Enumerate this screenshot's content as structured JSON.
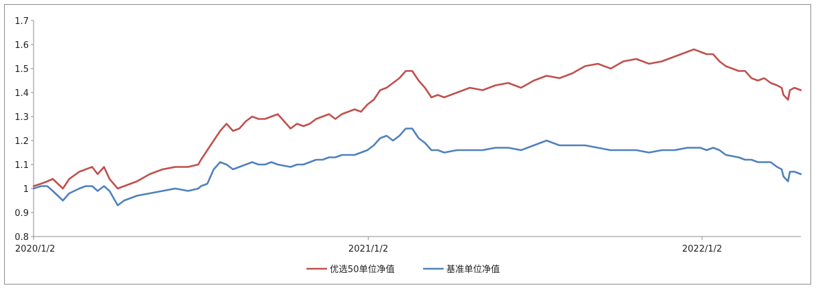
{
  "chart_data": {
    "type": "line",
    "title": "",
    "xlabel": "",
    "ylabel": "",
    "ylim": [
      0.8,
      1.7
    ],
    "yticks": [
      "0.8",
      "0.9",
      "1",
      "1.1",
      "1.2",
      "1.3",
      "1.4",
      "1.5",
      "1.6",
      "1.7"
    ],
    "xticks": [
      {
        "label": "2020/1/2",
        "date": "2020-01-02"
      },
      {
        "label": "2021/1/2",
        "date": "2021-01-02"
      },
      {
        "label": "2022/1/2",
        "date": "2022-01-02"
      }
    ],
    "xlim": [
      "2020-01-02",
      "2022-04-20"
    ],
    "grid": false,
    "legend_position": "bottom",
    "series": [
      {
        "name": "优选50单位净值",
        "color": "#c0504d",
        "points": [
          [
            "2020-01-02",
            1.01
          ],
          [
            "2020-01-10",
            1.02
          ],
          [
            "2020-01-17",
            1.03
          ],
          [
            "2020-01-23",
            1.04
          ],
          [
            "2020-02-03",
            1.0
          ],
          [
            "2020-02-10",
            1.04
          ],
          [
            "2020-02-21",
            1.07
          ],
          [
            "2020-02-28",
            1.08
          ],
          [
            "2020-03-06",
            1.09
          ],
          [
            "2020-03-12",
            1.06
          ],
          [
            "2020-03-19",
            1.09
          ],
          [
            "2020-03-25",
            1.04
          ],
          [
            "2020-04-03",
            1.0
          ],
          [
            "2020-04-10",
            1.01
          ],
          [
            "2020-04-17",
            1.02
          ],
          [
            "2020-04-24",
            1.03
          ],
          [
            "2020-05-08",
            1.06
          ],
          [
            "2020-05-22",
            1.08
          ],
          [
            "2020-06-05",
            1.09
          ],
          [
            "2020-06-19",
            1.09
          ],
          [
            "2020-06-30",
            1.1
          ],
          [
            "2020-07-03",
            1.12
          ],
          [
            "2020-07-10",
            1.16
          ],
          [
            "2020-07-17",
            1.2
          ],
          [
            "2020-07-24",
            1.24
          ],
          [
            "2020-07-31",
            1.27
          ],
          [
            "2020-08-07",
            1.24
          ],
          [
            "2020-08-14",
            1.25
          ],
          [
            "2020-08-21",
            1.28
          ],
          [
            "2020-08-28",
            1.3
          ],
          [
            "2020-09-04",
            1.29
          ],
          [
            "2020-09-11",
            1.29
          ],
          [
            "2020-09-18",
            1.3
          ],
          [
            "2020-09-25",
            1.31
          ],
          [
            "2020-10-09",
            1.25
          ],
          [
            "2020-10-16",
            1.27
          ],
          [
            "2020-10-23",
            1.26
          ],
          [
            "2020-10-30",
            1.27
          ],
          [
            "2020-11-06",
            1.29
          ],
          [
            "2020-11-13",
            1.3
          ],
          [
            "2020-11-20",
            1.31
          ],
          [
            "2020-11-27",
            1.29
          ],
          [
            "2020-12-04",
            1.31
          ],
          [
            "2020-12-11",
            1.32
          ],
          [
            "2020-12-18",
            1.33
          ],
          [
            "2020-12-25",
            1.32
          ],
          [
            "2021-01-01",
            1.35
          ],
          [
            "2021-01-08",
            1.37
          ],
          [
            "2021-01-15",
            1.41
          ],
          [
            "2021-01-22",
            1.42
          ],
          [
            "2021-01-29",
            1.44
          ],
          [
            "2021-02-05",
            1.46
          ],
          [
            "2021-02-12",
            1.49
          ],
          [
            "2021-02-19",
            1.49
          ],
          [
            "2021-02-26",
            1.45
          ],
          [
            "2021-03-05",
            1.42
          ],
          [
            "2021-03-12",
            1.38
          ],
          [
            "2021-03-19",
            1.39
          ],
          [
            "2021-03-26",
            1.38
          ],
          [
            "2021-04-09",
            1.4
          ],
          [
            "2021-04-23",
            1.42
          ],
          [
            "2021-05-07",
            1.41
          ],
          [
            "2021-05-21",
            1.43
          ],
          [
            "2021-06-04",
            1.44
          ],
          [
            "2021-06-18",
            1.42
          ],
          [
            "2021-07-02",
            1.45
          ],
          [
            "2021-07-16",
            1.47
          ],
          [
            "2021-07-30",
            1.46
          ],
          [
            "2021-08-13",
            1.48
          ],
          [
            "2021-08-27",
            1.51
          ],
          [
            "2021-09-10",
            1.52
          ],
          [
            "2021-09-24",
            1.5
          ],
          [
            "2021-10-08",
            1.53
          ],
          [
            "2021-10-22",
            1.54
          ],
          [
            "2021-11-05",
            1.52
          ],
          [
            "2021-11-19",
            1.53
          ],
          [
            "2021-12-03",
            1.55
          ],
          [
            "2021-12-17",
            1.57
          ],
          [
            "2021-12-24",
            1.58
          ],
          [
            "2021-12-31",
            1.57
          ],
          [
            "2022-01-07",
            1.56
          ],
          [
            "2022-01-14",
            1.56
          ],
          [
            "2022-01-21",
            1.53
          ],
          [
            "2022-01-28",
            1.51
          ],
          [
            "2022-02-11",
            1.49
          ],
          [
            "2022-02-18",
            1.49
          ],
          [
            "2022-02-25",
            1.46
          ],
          [
            "2022-03-04",
            1.45
          ],
          [
            "2022-03-11",
            1.46
          ],
          [
            "2022-03-18",
            1.44
          ],
          [
            "2022-03-25",
            1.43
          ],
          [
            "2022-03-30",
            1.42
          ],
          [
            "2022-04-01",
            1.39
          ],
          [
            "2022-04-06",
            1.37
          ],
          [
            "2022-04-08",
            1.41
          ],
          [
            "2022-04-13",
            1.42
          ],
          [
            "2022-04-20",
            1.41
          ]
        ]
      },
      {
        "name": "基准单位净值",
        "color": "#4f81bd",
        "points": [
          [
            "2020-01-02",
            1.0
          ],
          [
            "2020-01-10",
            1.01
          ],
          [
            "2020-01-17",
            1.01
          ],
          [
            "2020-01-23",
            0.99
          ],
          [
            "2020-02-03",
            0.95
          ],
          [
            "2020-02-10",
            0.98
          ],
          [
            "2020-02-21",
            1.0
          ],
          [
            "2020-02-28",
            1.01
          ],
          [
            "2020-03-06",
            1.01
          ],
          [
            "2020-03-12",
            0.99
          ],
          [
            "2020-03-19",
            1.01
          ],
          [
            "2020-03-25",
            0.99
          ],
          [
            "2020-04-03",
            0.93
          ],
          [
            "2020-04-10",
            0.95
          ],
          [
            "2020-04-17",
            0.96
          ],
          [
            "2020-04-24",
            0.97
          ],
          [
            "2020-05-08",
            0.98
          ],
          [
            "2020-05-22",
            0.99
          ],
          [
            "2020-06-05",
            1.0
          ],
          [
            "2020-06-19",
            0.99
          ],
          [
            "2020-06-30",
            1.0
          ],
          [
            "2020-07-03",
            1.01
          ],
          [
            "2020-07-10",
            1.02
          ],
          [
            "2020-07-17",
            1.08
          ],
          [
            "2020-07-24",
            1.11
          ],
          [
            "2020-07-31",
            1.1
          ],
          [
            "2020-08-07",
            1.08
          ],
          [
            "2020-08-14",
            1.09
          ],
          [
            "2020-08-21",
            1.1
          ],
          [
            "2020-08-28",
            1.11
          ],
          [
            "2020-09-04",
            1.1
          ],
          [
            "2020-09-11",
            1.1
          ],
          [
            "2020-09-18",
            1.11
          ],
          [
            "2020-09-25",
            1.1
          ],
          [
            "2020-10-09",
            1.09
          ],
          [
            "2020-10-16",
            1.1
          ],
          [
            "2020-10-23",
            1.1
          ],
          [
            "2020-10-30",
            1.11
          ],
          [
            "2020-11-06",
            1.12
          ],
          [
            "2020-11-13",
            1.12
          ],
          [
            "2020-11-20",
            1.13
          ],
          [
            "2020-11-27",
            1.13
          ],
          [
            "2020-12-04",
            1.14
          ],
          [
            "2020-12-11",
            1.14
          ],
          [
            "2020-12-18",
            1.14
          ],
          [
            "2020-12-25",
            1.15
          ],
          [
            "2021-01-01",
            1.16
          ],
          [
            "2021-01-08",
            1.18
          ],
          [
            "2021-01-15",
            1.21
          ],
          [
            "2021-01-22",
            1.22
          ],
          [
            "2021-01-29",
            1.2
          ],
          [
            "2021-02-05",
            1.22
          ],
          [
            "2021-02-12",
            1.25
          ],
          [
            "2021-02-19",
            1.25
          ],
          [
            "2021-02-26",
            1.21
          ],
          [
            "2021-03-05",
            1.19
          ],
          [
            "2021-03-12",
            1.16
          ],
          [
            "2021-03-19",
            1.16
          ],
          [
            "2021-03-26",
            1.15
          ],
          [
            "2021-04-09",
            1.16
          ],
          [
            "2021-04-23",
            1.16
          ],
          [
            "2021-05-07",
            1.16
          ],
          [
            "2021-05-21",
            1.17
          ],
          [
            "2021-06-04",
            1.17
          ],
          [
            "2021-06-18",
            1.16
          ],
          [
            "2021-07-02",
            1.18
          ],
          [
            "2021-07-16",
            1.2
          ],
          [
            "2021-07-30",
            1.18
          ],
          [
            "2021-08-13",
            1.18
          ],
          [
            "2021-08-27",
            1.18
          ],
          [
            "2021-09-10",
            1.17
          ],
          [
            "2021-09-24",
            1.16
          ],
          [
            "2021-10-08",
            1.16
          ],
          [
            "2021-10-22",
            1.16
          ],
          [
            "2021-11-05",
            1.15
          ],
          [
            "2021-11-19",
            1.16
          ],
          [
            "2021-12-03",
            1.16
          ],
          [
            "2021-12-17",
            1.17
          ],
          [
            "2021-12-24",
            1.17
          ],
          [
            "2021-12-31",
            1.17
          ],
          [
            "2022-01-07",
            1.16
          ],
          [
            "2022-01-14",
            1.17
          ],
          [
            "2022-01-21",
            1.16
          ],
          [
            "2022-01-28",
            1.14
          ],
          [
            "2022-02-11",
            1.13
          ],
          [
            "2022-02-18",
            1.12
          ],
          [
            "2022-02-25",
            1.12
          ],
          [
            "2022-03-04",
            1.11
          ],
          [
            "2022-03-11",
            1.11
          ],
          [
            "2022-03-18",
            1.11
          ],
          [
            "2022-03-25",
            1.09
          ],
          [
            "2022-03-30",
            1.08
          ],
          [
            "2022-04-01",
            1.05
          ],
          [
            "2022-04-06",
            1.03
          ],
          [
            "2022-04-08",
            1.07
          ],
          [
            "2022-04-13",
            1.07
          ],
          [
            "2022-04-20",
            1.06
          ]
        ]
      }
    ]
  }
}
